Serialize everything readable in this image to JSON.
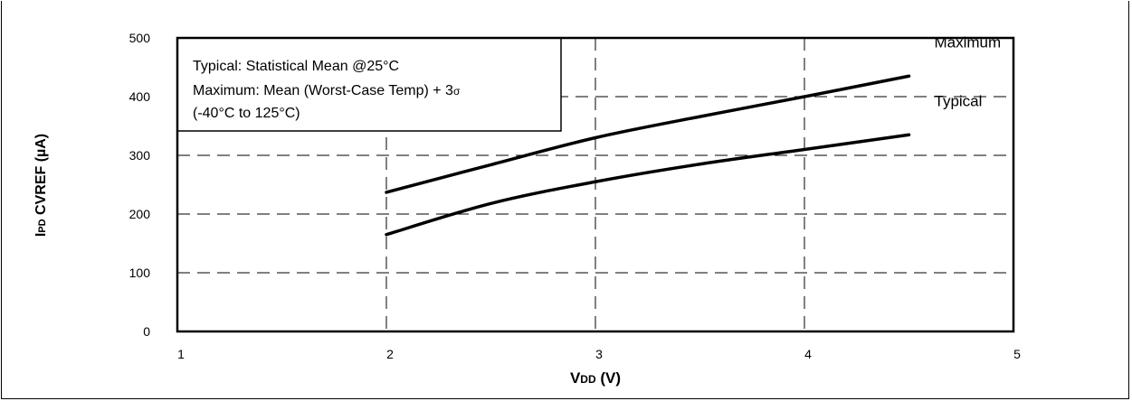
{
  "chart_data": {
    "type": "line",
    "xlabel_main": "V",
    "xlabel_sub": "DD",
    "xlabel_tail": " (V)",
    "ylabel_main": "I",
    "ylabel_sub": "PD",
    "ylabel_tail": " CVREF (µA)",
    "xlim": [
      1,
      5
    ],
    "ylim": [
      0,
      500
    ],
    "x_ticks": [
      "1",
      "2",
      "3",
      "4",
      "5"
    ],
    "y_ticks": [
      "0",
      "100",
      "200",
      "300",
      "400",
      "500"
    ],
    "grid": true,
    "annotation": {
      "line1": "Typical: Statistical Mean @25°C",
      "line2_main": "Maximum: Mean (Worst-Case Temp) + 3",
      "line2_sigma": "σ",
      "line3": "(-40°C to 125°C)"
    },
    "series": [
      {
        "name": "Maximum",
        "x": [
          2.0,
          2.5,
          3.0,
          3.5,
          4.0,
          4.5
        ],
        "y": [
          237,
          284,
          330,
          366,
          400,
          435
        ]
      },
      {
        "name": "Typical",
        "x": [
          2.0,
          2.5,
          3.0,
          3.5,
          4.0,
          4.5
        ],
        "y": [
          165,
          218,
          255,
          285,
          310,
          335
        ]
      }
    ]
  }
}
